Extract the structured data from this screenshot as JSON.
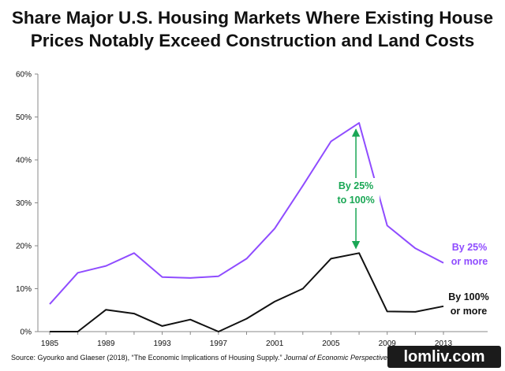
{
  "chart_data": {
    "type": "line",
    "title": [
      "Share Major U.S. Housing Markets Where Existing House",
      "Prices  Notably Exceed  Construction and Land Costs"
    ],
    "x": [
      1985,
      1987,
      1989,
      1991,
      1993,
      1995,
      1997,
      1999,
      2001,
      2003,
      2005,
      2007,
      2009,
      2011,
      2013
    ],
    "x_tick_labels": [
      "1985",
      "1989",
      "1993",
      "1997",
      "2001",
      "2005",
      "2009",
      "2013"
    ],
    "x_ticks": [
      1985,
      1989,
      1993,
      1997,
      2001,
      2005,
      2009,
      2013
    ],
    "y_tick_labels": [
      "0%",
      "10%",
      "20%",
      "30%",
      "40%",
      "50%",
      "60%"
    ],
    "y_ticks": [
      0,
      10,
      20,
      30,
      40,
      50,
      60
    ],
    "xlim": [
      1985,
      2013
    ],
    "ylim": [
      0,
      60
    ],
    "grid": false,
    "series": [
      {
        "name": "By 25% or more",
        "label_lines": [
          "By 25%",
          "or more"
        ],
        "color": "#8f4cff",
        "values": [
          6.4,
          13.7,
          15.3,
          18.3,
          12.7,
          12.5,
          12.9,
          17.0,
          24.0,
          34.0,
          44.3,
          48.6,
          24.7,
          19.4,
          16.0
        ]
      },
      {
        "name": "By 100% or more",
        "label_lines": [
          "By 100%",
          "or more"
        ],
        "color": "#111111",
        "values": [
          0.0,
          0.0,
          5.1,
          4.2,
          1.3,
          2.8,
          0.0,
          3.0,
          7.0,
          10.0,
          17.0,
          18.3,
          4.7,
          4.6,
          5.9
        ]
      }
    ],
    "annotations": [
      {
        "text_lines": [
          "By 25%",
          "to 100%"
        ],
        "color": "#1aa755",
        "arrow": "double",
        "x": 2007,
        "y_from": 18.3,
        "y_to": 48.6
      }
    ],
    "source": {
      "prefix": "Source: Gyourko and Glaeser (2018),  “The Economic Implications of Housing Supply.” ",
      "journal": "Journal of Economic Perspectives"
    }
  },
  "watermark": "lomliv.com"
}
